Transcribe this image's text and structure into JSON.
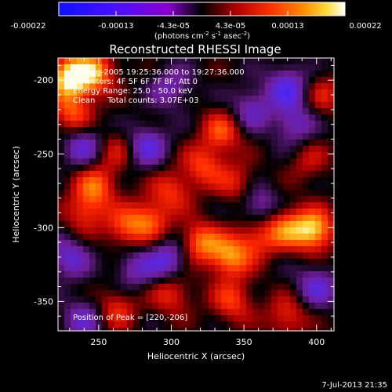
{
  "chart_data": {
    "type": "heatmap",
    "title": "Reconstructed RHESSI Image",
    "xlabel": "Heliocentric X (arcsec)",
    "ylabel": "Heliocentric Y (arcsec)",
    "xlim": [
      222,
      412
    ],
    "ylim": [
      -370,
      -185
    ],
    "xticks": [
      250,
      300,
      350,
      400
    ],
    "yticks": [
      -200,
      -250,
      -300,
      -350
    ],
    "colorbar": {
      "range": [
        -0.00022,
        0.00022
      ],
      "ticks": [
        "-0.00022",
        "-0.00013",
        "-4.3e-05",
        "4.3e-05",
        "0.00013",
        "0.00022"
      ],
      "colormap": "blue-purple-red-orange-yellow-white",
      "label_main": "(photons cm",
      "label_exp1": "-2",
      "label_mid": " s",
      "label_exp2": "-1",
      "label_tail": " asec",
      "label_exp3": "-2",
      "label_end": ")"
    },
    "annotations": [
      "19-Aug-2005 19:25:36.000 to 19:27:36.000",
      "Detectors: 4F 5F 6F 7F 8F, Att 0",
      "Energy Range: 25.0 - 50.0 keV",
      "Clean     Total counts: 3.07E+03",
      "Position of Peak = [220,-206]"
    ],
    "blobs": [
      {
        "x": 230,
        "y": -198,
        "v": 1.0
      },
      {
        "x": 248,
        "y": -195,
        "v": 0.7
      },
      {
        "x": 232,
        "y": -222,
        "v": 0.55
      },
      {
        "x": 262,
        "y": -248,
        "v": 0.35
      },
      {
        "x": 248,
        "y": -272,
        "v": 0.6
      },
      {
        "x": 240,
        "y": -290,
        "v": 0.45
      },
      {
        "x": 268,
        "y": -300,
        "v": 0.5
      },
      {
        "x": 285,
        "y": -295,
        "v": 0.55
      },
      {
        "x": 300,
        "y": -275,
        "v": 0.45
      },
      {
        "x": 322,
        "y": -258,
        "v": 0.5
      },
      {
        "x": 335,
        "y": -235,
        "v": 0.55
      },
      {
        "x": 320,
        "y": -310,
        "v": 0.65
      },
      {
        "x": 340,
        "y": -320,
        "v": 0.7
      },
      {
        "x": 358,
        "y": -308,
        "v": 0.45
      },
      {
        "x": 378,
        "y": -300,
        "v": 0.6
      },
      {
        "x": 398,
        "y": -302,
        "v": 0.9
      },
      {
        "x": 300,
        "y": -345,
        "v": 0.45
      },
      {
        "x": 262,
        "y": -355,
        "v": 0.45
      },
      {
        "x": 342,
        "y": -350,
        "v": 0.5
      },
      {
        "x": 380,
        "y": -360,
        "v": 0.45
      },
      {
        "x": 405,
        "y": -210,
        "v": 0.35
      },
      {
        "x": 395,
        "y": -255,
        "v": 0.3
      },
      {
        "x": 345,
        "y": -270,
        "v": 0.4
      },
      {
        "x": 355,
        "y": -220,
        "v": -0.45
      },
      {
        "x": 380,
        "y": -205,
        "v": -0.6
      },
      {
        "x": 300,
        "y": -205,
        "v": -0.4
      },
      {
        "x": 283,
        "y": -245,
        "v": -0.55
      },
      {
        "x": 240,
        "y": -245,
        "v": -0.5
      },
      {
        "x": 230,
        "y": -320,
        "v": -0.5
      },
      {
        "x": 298,
        "y": -322,
        "v": -0.55
      },
      {
        "x": 360,
        "y": -285,
        "v": -0.45
      },
      {
        "x": 400,
        "y": -340,
        "v": -0.5
      },
      {
        "x": 385,
        "y": -230,
        "v": -0.45
      },
      {
        "x": 275,
        "y": -328,
        "v": -0.4
      },
      {
        "x": 240,
        "y": -362,
        "v": -0.45
      }
    ]
  },
  "timestamp": "7-Jul-2013 21:35"
}
